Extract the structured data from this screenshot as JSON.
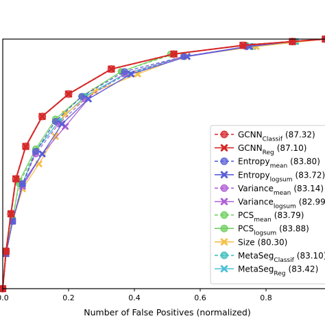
{
  "chart_data": {
    "type": "line",
    "title": "",
    "xlabel": "Number of False Positives (normalized)",
    "ylabel": "",
    "xlim": [
      0.0,
      1.0
    ],
    "ylim": [
      0.0,
      1.0
    ],
    "x_ticks": [
      "0.0",
      "0.2",
      "0.4",
      "0.6",
      "0.8"
    ],
    "x_tick_values": [
      0.0,
      0.2,
      0.4,
      0.6,
      0.8
    ],
    "grid": false,
    "legend_position": "lower-right",
    "series": [
      {
        "name": "GCNN",
        "sub": "Classif",
        "score": "(87.32)",
        "color": "#d62728",
        "marker": "circle",
        "dashed": true,
        "x": [
          0.0,
          0.01,
          0.025,
          0.04,
          0.07,
          0.12,
          0.2,
          0.33,
          0.52,
          0.73,
          0.88,
          0.98
        ],
        "y": [
          0.0,
          0.15,
          0.3,
          0.44,
          0.57,
          0.69,
          0.78,
          0.88,
          0.94,
          0.975,
          0.99,
          1.0
        ]
      },
      {
        "name": "GCNN",
        "sub": "Reg",
        "score": "(87.10)",
        "color": "#d62728",
        "marker": "x",
        "dashed": false,
        "x": [
          0.0,
          0.01,
          0.025,
          0.04,
          0.07,
          0.12,
          0.2,
          0.33,
          0.52,
          0.73,
          0.88,
          0.98
        ],
        "y": [
          0.0,
          0.15,
          0.3,
          0.44,
          0.57,
          0.69,
          0.78,
          0.88,
          0.94,
          0.975,
          0.99,
          1.0
        ]
      },
      {
        "name": "Entropy",
        "sub": "mean",
        "score": "(83.80)",
        "color": "#5a5fd6",
        "marker": "circle",
        "dashed": true,
        "x": [
          0.0,
          0.01,
          0.03,
          0.06,
          0.1,
          0.16,
          0.24,
          0.37,
          0.55,
          0.74,
          0.88,
          0.98
        ],
        "y": [
          0.0,
          0.14,
          0.27,
          0.42,
          0.55,
          0.67,
          0.77,
          0.87,
          0.93,
          0.97,
          0.99,
          1.0
        ]
      },
      {
        "name": "Entropy",
        "sub": "logsum",
        "score": "(83.72)",
        "color": "#5a5fd6",
        "marker": "x",
        "dashed": false,
        "x": [
          0.0,
          0.01,
          0.03,
          0.06,
          0.12,
          0.18,
          0.26,
          0.39,
          0.56,
          0.75,
          0.88,
          0.98
        ],
        "y": [
          0.0,
          0.14,
          0.27,
          0.42,
          0.54,
          0.66,
          0.76,
          0.86,
          0.93,
          0.97,
          0.99,
          1.0
        ]
      },
      {
        "name": "Variance",
        "sub": "mean",
        "score": "(83.14)",
        "color": "#b05ed6",
        "marker": "circle",
        "dashed": true,
        "x": [
          0.0,
          0.01,
          0.03,
          0.06,
          0.1,
          0.17,
          0.25,
          0.37,
          0.55,
          0.74,
          0.88,
          0.98
        ],
        "y": [
          0.0,
          0.14,
          0.27,
          0.42,
          0.54,
          0.66,
          0.76,
          0.86,
          0.93,
          0.97,
          0.99,
          1.0
        ]
      },
      {
        "name": "Variance",
        "sub": "logsum",
        "score": "(82.99)",
        "color": "#b05ed6",
        "marker": "x",
        "dashed": false,
        "x": [
          0.0,
          0.01,
          0.03,
          0.06,
          0.12,
          0.19,
          0.26,
          0.39,
          0.56,
          0.75,
          0.88,
          0.98
        ],
        "y": [
          0.0,
          0.14,
          0.27,
          0.41,
          0.54,
          0.65,
          0.76,
          0.86,
          0.93,
          0.97,
          0.99,
          1.0
        ]
      },
      {
        "name": "PCS",
        "sub": "mean",
        "score": "(83.79)",
        "color": "#6fcf5f",
        "marker": "circle",
        "dashed": true,
        "x": [
          0.0,
          0.01,
          0.03,
          0.05,
          0.1,
          0.16,
          0.24,
          0.36,
          0.52,
          0.74,
          0.88,
          0.98
        ],
        "y": [
          0.0,
          0.15,
          0.28,
          0.42,
          0.55,
          0.67,
          0.77,
          0.87,
          0.94,
          0.975,
          0.99,
          1.0
        ]
      },
      {
        "name": "PCS",
        "sub": "logsum",
        "score": "(83.88)",
        "color": "#6fcf5f",
        "marker": "circle",
        "dashed": false,
        "x": [
          0.0,
          0.01,
          0.03,
          0.05,
          0.1,
          0.16,
          0.24,
          0.36,
          0.51,
          0.74,
          0.88,
          0.98
        ],
        "y": [
          0.0,
          0.15,
          0.28,
          0.43,
          0.56,
          0.68,
          0.77,
          0.87,
          0.94,
          0.975,
          0.99,
          1.0
        ]
      },
      {
        "name": "Size",
        "sub": "",
        "score": "(80.30)",
        "color": "#f5c04a",
        "marker": "x",
        "dashed": false,
        "x": [
          0.0,
          0.01,
          0.03,
          0.06,
          0.11,
          0.16,
          0.19,
          0.28,
          0.41,
          0.55,
          0.77,
          0.98
        ],
        "y": [
          0.0,
          0.14,
          0.27,
          0.4,
          0.5,
          0.61,
          0.7,
          0.79,
          0.86,
          0.93,
          0.97,
          1.0
        ]
      },
      {
        "name": "MetaSeg",
        "sub": "Classif",
        "score": "(83.10)",
        "color": "#3dbdbd",
        "marker": "circle",
        "dashed": true,
        "x": [
          0.0,
          0.01,
          0.03,
          0.06,
          0.1,
          0.17,
          0.25,
          0.38,
          0.55,
          0.76,
          0.89,
          0.98
        ],
        "y": [
          0.0,
          0.14,
          0.27,
          0.41,
          0.55,
          0.67,
          0.77,
          0.86,
          0.93,
          0.97,
          0.99,
          1.0
        ]
      },
      {
        "name": "MetaSeg",
        "sub": "Reg",
        "score": "(83.42)",
        "color": "#4fc0d8",
        "marker": "x",
        "dashed": false,
        "x": [
          0.0,
          0.01,
          0.03,
          0.06,
          0.1,
          0.17,
          0.25,
          0.37,
          0.55,
          0.76,
          0.89,
          0.98
        ],
        "y": [
          0.0,
          0.14,
          0.27,
          0.42,
          0.55,
          0.67,
          0.77,
          0.86,
          0.93,
          0.97,
          0.99,
          1.0
        ]
      }
    ]
  }
}
